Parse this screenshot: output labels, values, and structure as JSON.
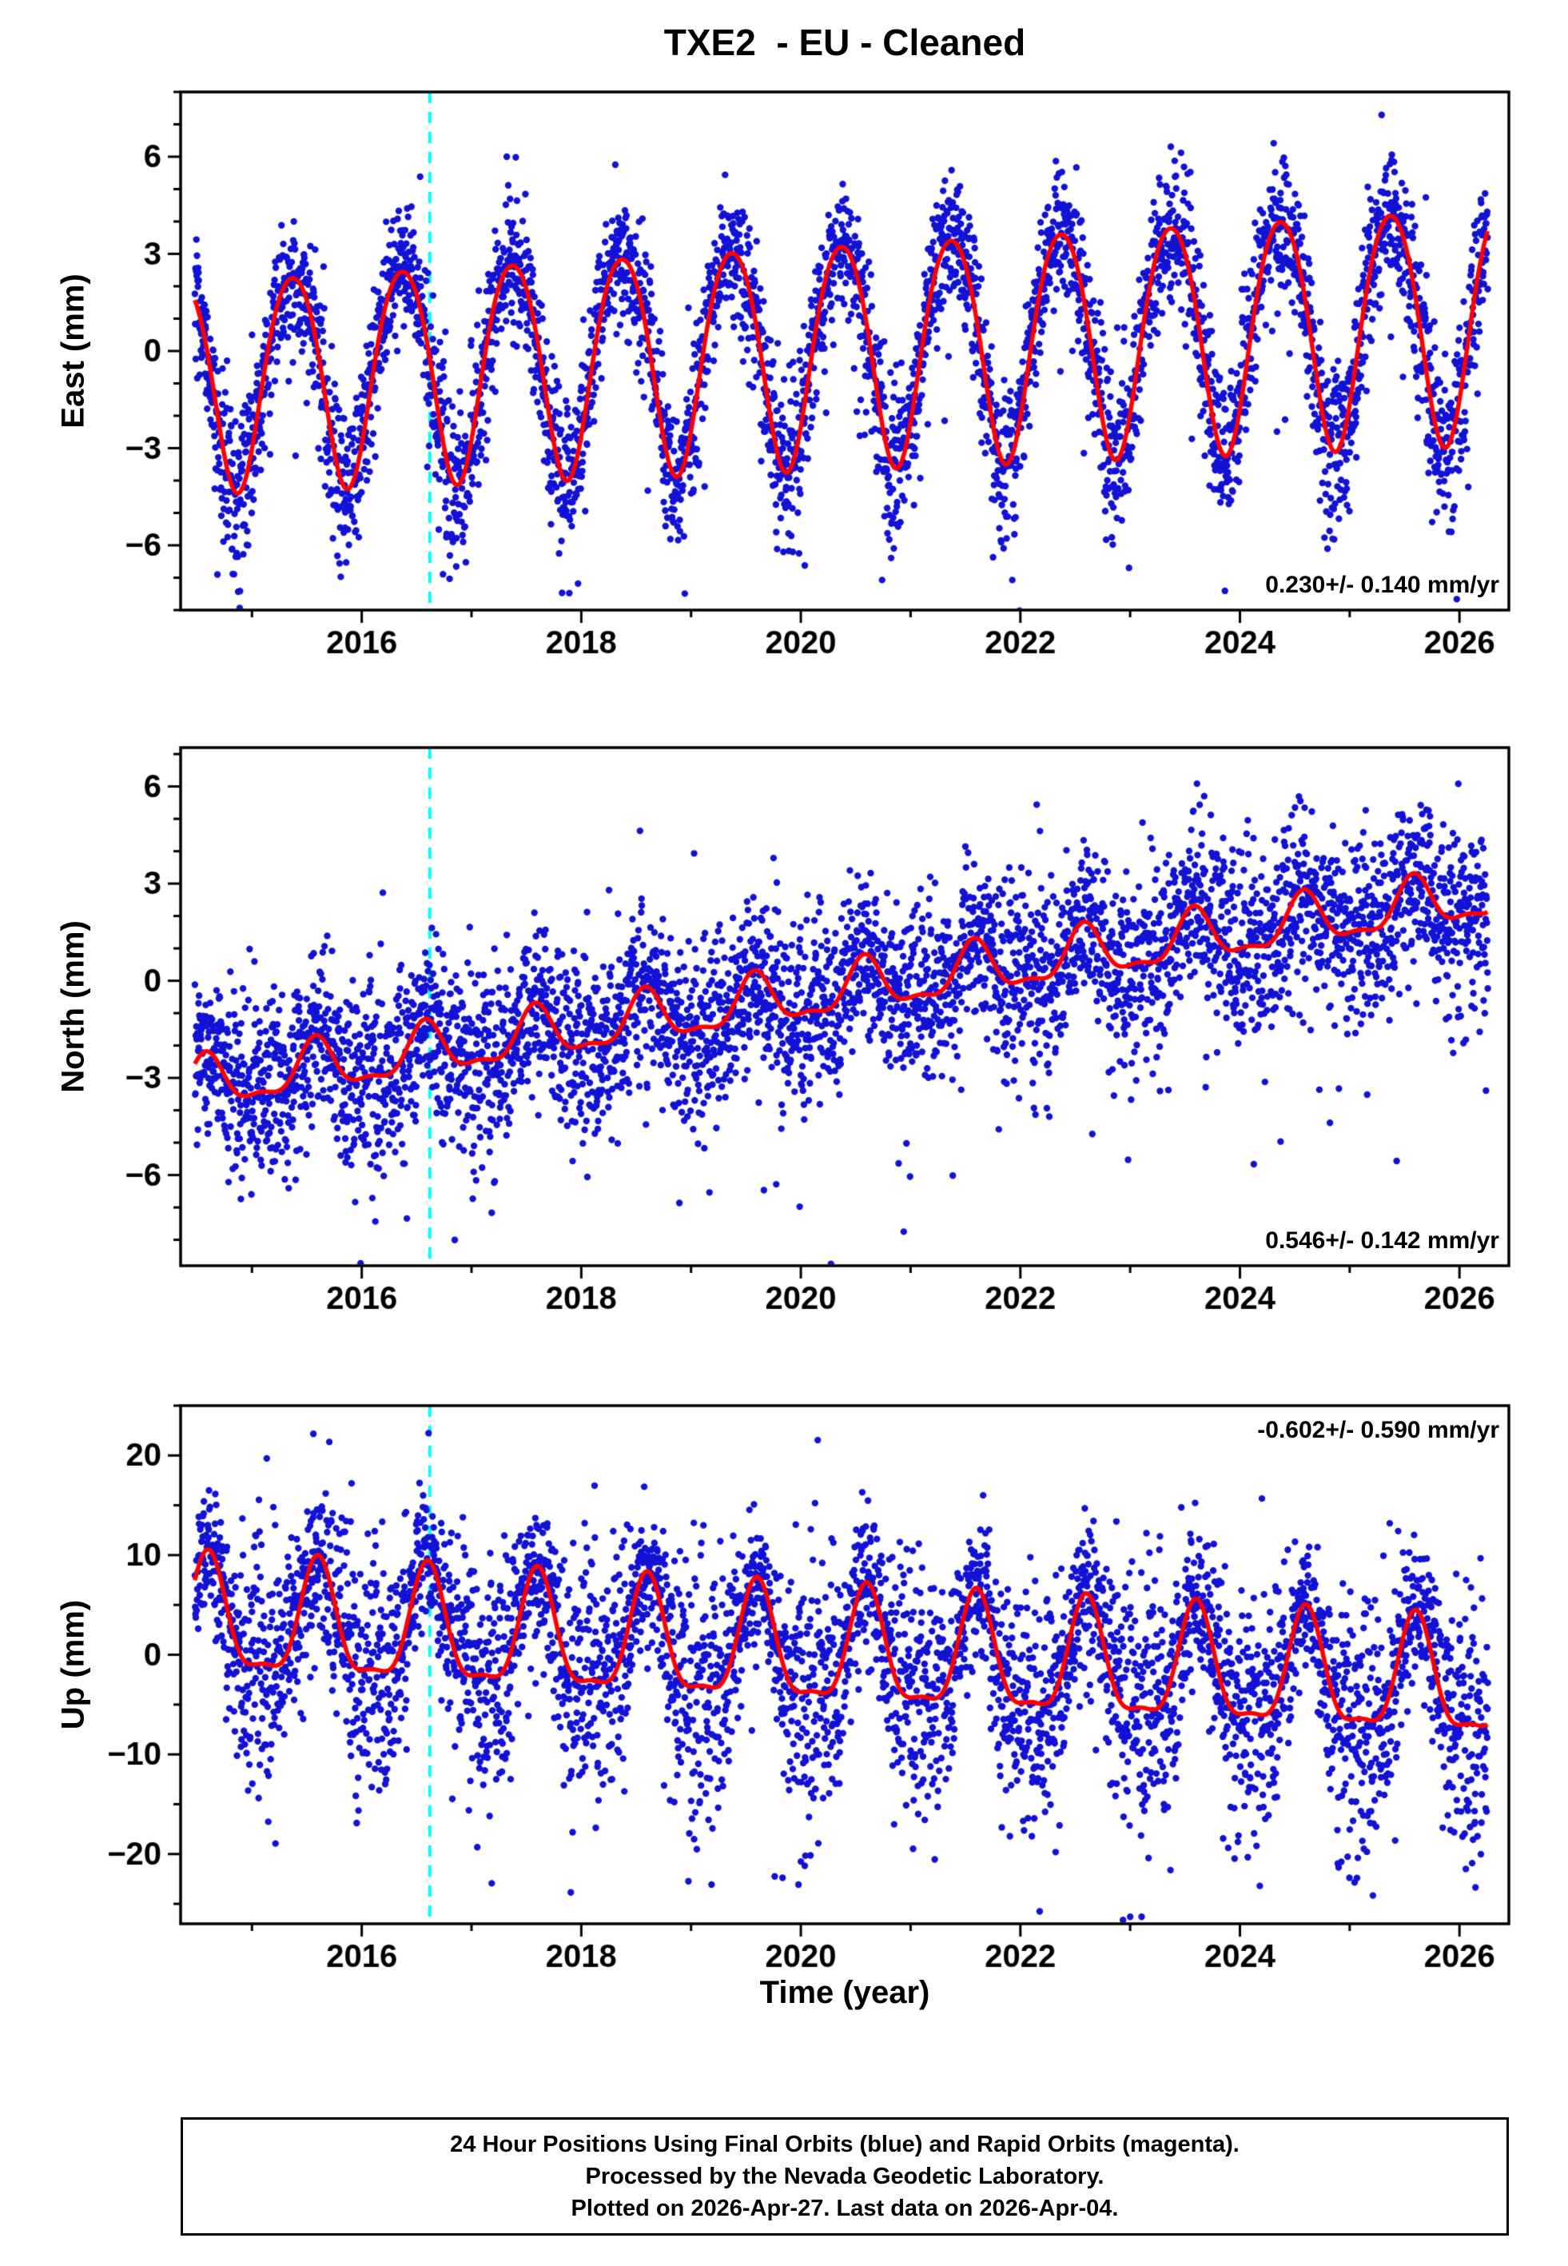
{
  "title": "TXE2  - EU - Cleaned",
  "xlabel": "Time (year)",
  "footer": {
    "line1": "24 Hour Positions Using Final Orbits (blue) and Rapid Orbits (magenta).",
    "line2": "Processed by the Nevada Geodetic Laboratory.",
    "line3": "Plotted on 2026-Apr-27. Last data on 2026-Apr-04."
  },
  "colors": {
    "points": "#1212d6",
    "model_line": "#ff0000",
    "event_line": "#00ffff",
    "frame": "#000000",
    "background": "#ffffff"
  },
  "chart_data": [
    {
      "type": "scatter",
      "id": "east",
      "ylabel": "East (mm)",
      "annotation": "0.230+/- 0.140 mm/yr",
      "annotation_corner": "bottom-right",
      "trend_mm_per_yr": 0.23,
      "trend_uncertainty_mm_per_yr": 0.14,
      "xlim": [
        2014.35,
        2026.45
      ],
      "ylim": [
        -8,
        8
      ],
      "yticks": [
        -6,
        -3,
        0,
        3,
        6
      ],
      "y_minor_step": 1,
      "xticks": [
        2016,
        2018,
        2020,
        2022,
        2024,
        2026
      ],
      "x_minor_step": 1,
      "x_start": 2014.48,
      "x_end": 2026.26,
      "points_per_year": 365,
      "event_x": 2016.62,
      "model": {
        "base": -0.8,
        "base_t": 2015,
        "slope": 0.16,
        "annual_amp": 3.28,
        "annual_amp_growth": 0.032,
        "annual_phase": 0.37,
        "semiannual_amp": 0.3,
        "semiannual_phase": 0.12
      },
      "noise_sigma": 1.15,
      "noise_seasonal": 0.15,
      "outlier_frac": 0.04,
      "outlier_scale": 2.6,
      "seed": 101
    },
    {
      "type": "scatter",
      "id": "north",
      "ylabel": "North (mm)",
      "annotation": "0.546+/- 0.142 mm/yr",
      "annotation_corner": "bottom-right",
      "trend_mm_per_yr": 0.546,
      "trend_uncertainty_mm_per_yr": 0.142,
      "xlim": [
        2014.35,
        2026.45
      ],
      "ylim": [
        -8.8,
        7.2
      ],
      "yticks": [
        -6,
        -3,
        0,
        3,
        6
      ],
      "y_minor_step": 1,
      "xticks": [
        2016,
        2018,
        2020,
        2022,
        2024,
        2026
      ],
      "x_minor_step": 1,
      "x_start": 2014.48,
      "x_end": 2026.26,
      "points_per_year": 365,
      "event_x": 2016.62,
      "model": {
        "base": -3.25,
        "base_t": 2014.5,
        "slope": 0.5,
        "annual_amp": 0.75,
        "annual_amp_growth": 0,
        "annual_phase": 0.58,
        "semiannual_amp": 0.28,
        "semiannual_phase": 0.58
      },
      "noise_sigma": 1.35,
      "noise_seasonal": 0.1,
      "outlier_frac": 0.05,
      "outlier_scale": 2.4,
      "seed": 202
    },
    {
      "type": "scatter",
      "id": "up",
      "ylabel": "Up (mm)",
      "annotation": "-0.602+/- 0.590 mm/yr",
      "annotation_corner": "top-right",
      "trend_mm_per_yr": -0.602,
      "trend_uncertainty_mm_per_yr": 0.59,
      "xlim": [
        2014.35,
        2026.45
      ],
      "ylim": [
        -27,
        25
      ],
      "yticks": [
        -20,
        -10,
        0,
        10,
        20
      ],
      "y_minor_step": 5,
      "xticks": [
        2016,
        2018,
        2020,
        2022,
        2024,
        2026
      ],
      "x_minor_step": 1,
      "x_start": 2014.48,
      "x_end": 2026.26,
      "points_per_year": 365,
      "event_x": 2016.62,
      "model": {
        "base": 3.0,
        "base_t": 2015,
        "slope": -0.55,
        "annual_amp": 5.6,
        "annual_amp_growth": 0,
        "annual_phase": 0.6,
        "semiannual_amp": 1.75,
        "semiannual_phase": 0.6
      },
      "noise_sigma": 5.2,
      "noise_seasonal": 0.35,
      "outlier_frac": 0.05,
      "outlier_scale": 2.0,
      "seed": 303
    }
  ]
}
